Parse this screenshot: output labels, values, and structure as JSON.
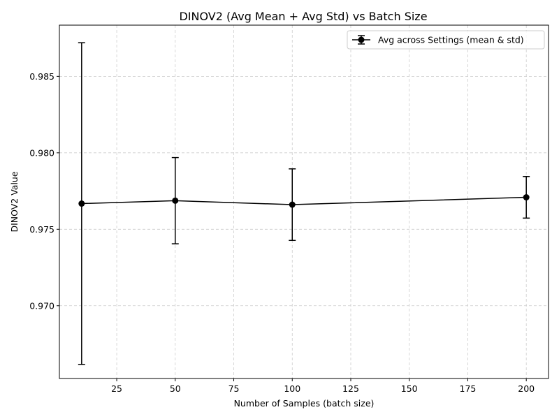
{
  "chart_data": {
    "type": "line",
    "title": "DINOV2 (Avg Mean + Avg Std) vs Batch Size",
    "xlabel": "Number of Samples (batch size)",
    "ylabel": "DINOV2 Value",
    "x": [
      10,
      50,
      100,
      200
    ],
    "series": [
      {
        "name": "Avg across Settings (mean & std)",
        "values": [
          0.97668,
          0.97687,
          0.97661,
          0.97709
        ],
        "std": [
          0.01052,
          0.00282,
          0.00234,
          0.00136
        ],
        "color": "#000000",
        "marker": "circle"
      }
    ],
    "xlim": [
      0.5,
      209.5
    ],
    "ylim": [
      0.96524,
      0.98835
    ],
    "xticks": [
      25,
      50,
      75,
      100,
      125,
      150,
      175,
      200
    ],
    "xtick_labels": [
      "25",
      "50",
      "75",
      "100",
      "125",
      "150",
      "175",
      "200"
    ],
    "yticks": [
      0.97,
      0.975,
      0.98,
      0.985
    ],
    "ytick_labels": [
      "0.970",
      "0.975",
      "0.980",
      "0.985"
    ],
    "grid": true,
    "grid_color": "#cccccc",
    "legend_position": "top-right"
  }
}
